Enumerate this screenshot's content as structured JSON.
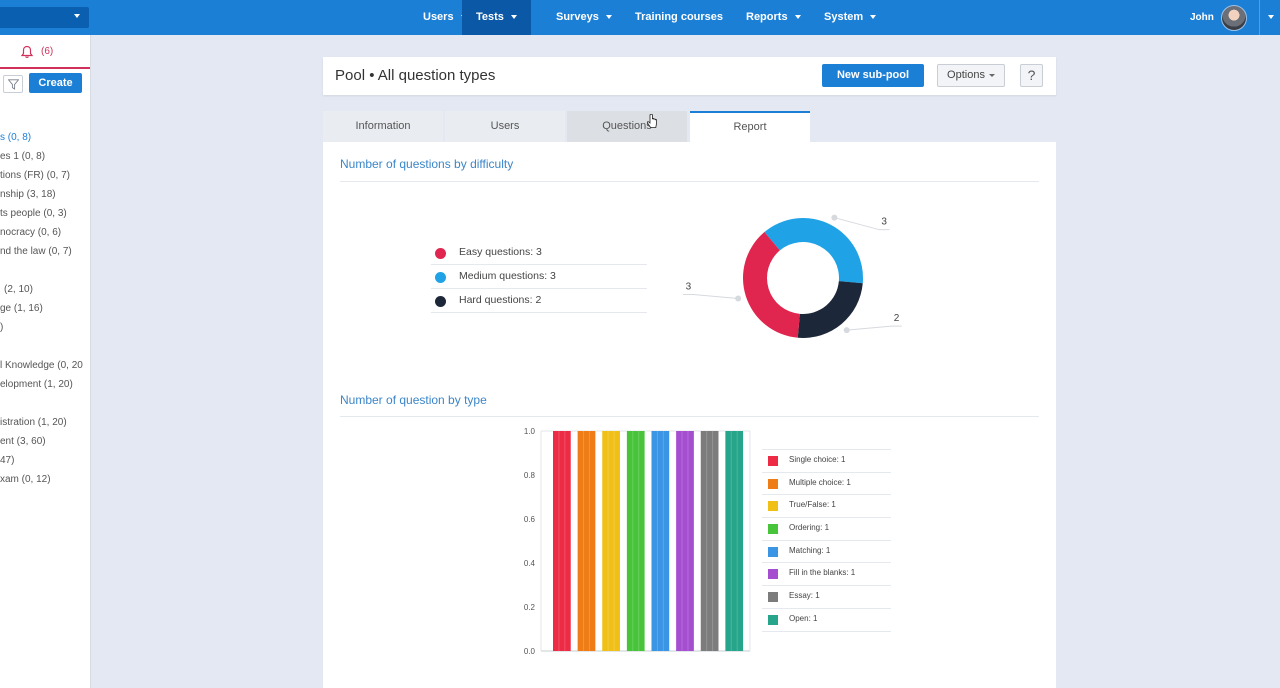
{
  "topbar": {
    "nav": [
      {
        "label": "Users",
        "active": false,
        "caret": true
      },
      {
        "label": "Tests",
        "active": true,
        "caret": true
      },
      {
        "label": "Surveys",
        "active": false,
        "caret": true
      },
      {
        "label": "Training courses",
        "active": false,
        "caret": false
      },
      {
        "label": "Reports",
        "active": false,
        "caret": true
      },
      {
        "label": "System",
        "active": false,
        "caret": true
      }
    ],
    "user_name": "John"
  },
  "sidebar": {
    "notification_count": "(6)",
    "create_label": "Create",
    "items": [
      "s (0, 8)",
      "es 1 (0, 8)",
      "tions (FR) (0, 7)",
      "nship (3, 18)",
      "ts people (0, 3)",
      "nocracy (0, 6)",
      "nd the law (0, 7)",
      "(2, 10)",
      "ge (1, 16)",
      ")",
      "l Knowledge (0, 20",
      "elopment (1, 20)",
      "istration (1, 20)",
      "ent (3, 60)",
      "47)",
      "xam (0, 12)"
    ]
  },
  "header": {
    "title": "Pool • All question types",
    "new_subpool_label": "New sub-pool",
    "options_label": "Options",
    "help_label": "?"
  },
  "tabs": [
    "Information",
    "Users",
    "Questions",
    "Report"
  ],
  "report": {
    "difficulty_title": "Number of questions by difficulty",
    "type_title": "Number of question by type"
  },
  "colors": {
    "accent": "#1c7fd6",
    "easy": "#e0254e",
    "medium": "#1fa3e6",
    "hard": "#1c2739"
  },
  "chart_data": [
    {
      "type": "pie",
      "title": "Number of questions by difficulty",
      "legend_labels": [
        "Easy questions: 3",
        "Medium questions: 3",
        "Hard questions: 2"
      ],
      "categories": [
        "Easy questions",
        "Medium questions",
        "Hard questions"
      ],
      "values": [
        3,
        3,
        2
      ],
      "colors": [
        "#e0254e",
        "#1fa3e6",
        "#1c2739"
      ],
      "donut": true,
      "legend_position": "left"
    },
    {
      "type": "bar",
      "title": "Number of question by type",
      "categories": [
        "Single choice",
        "Multiple choice",
        "True/False",
        "Ordering",
        "Matching",
        "Fill in the blanks",
        "Essay",
        "Open"
      ],
      "legend_labels": [
        "Single choice: 1",
        "Multiple choice: 1",
        "True/False: 1",
        "Ordering: 1",
        "Matching: 1",
        "Fill in the blanks: 1",
        "Essay: 1",
        "Open: 1"
      ],
      "values": [
        1,
        1,
        1,
        1,
        1,
        1,
        1,
        1
      ],
      "colors": [
        "#ee2b45",
        "#ef7d17",
        "#f0c016",
        "#47c43a",
        "#3a95e4",
        "#a54ed0",
        "#7c7c7c",
        "#26a58a"
      ],
      "ylim": [
        0,
        1.0
      ],
      "yticks": [
        "0.0",
        "0.2",
        "0.4",
        "0.6",
        "0.8",
        "1.0"
      ],
      "legend_position": "right"
    }
  ]
}
